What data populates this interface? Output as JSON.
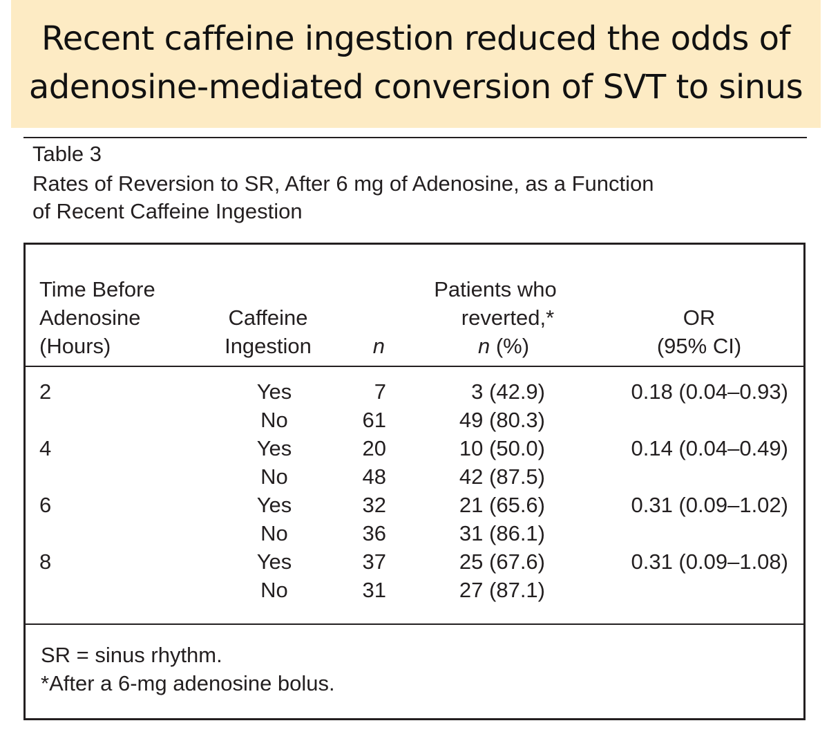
{
  "headline": {
    "line1": "Recent caffeine ingestion reduced the odds of",
    "line2": "adenosine-mediated conversion of SVT to sinus"
  },
  "table": {
    "label": "Table 3",
    "caption_line1": "Rates of Reversion to SR, After 6 mg of Adenosine, as a Function",
    "caption_line2": "of Recent Caffeine Ingestion",
    "headers": {
      "time": [
        "Time Before",
        "Adenosine",
        "(Hours)"
      ],
      "caffeine": [
        "Caffeine",
        "Ingestion"
      ],
      "n": "n",
      "reverted_line1": "Patients who",
      "reverted_line2": "reverted,*",
      "reverted_line3_italic": "n",
      "reverted_line3_rest": " (%)",
      "or_line1": "OR",
      "or_line2": "(95% CI)"
    },
    "rows": [
      {
        "time": "2",
        "caffeine": "Yes",
        "n": "7",
        "reverted": "3 (42.9)",
        "or": "0.18 (0.04–0.93)"
      },
      {
        "time": "",
        "caffeine": "No",
        "n": "61",
        "reverted": "49 (80.3)",
        "or": ""
      },
      {
        "time": "4",
        "caffeine": "Yes",
        "n": "20",
        "reverted": "10 (50.0)",
        "or": "0.14 (0.04–0.49)"
      },
      {
        "time": "",
        "caffeine": "No",
        "n": "48",
        "reverted": "42 (87.5)",
        "or": ""
      },
      {
        "time": "6",
        "caffeine": "Yes",
        "n": "32",
        "reverted": "21 (65.6)",
        "or": "0.31 (0.09–1.02)"
      },
      {
        "time": "",
        "caffeine": "No",
        "n": "36",
        "reverted": "31 (86.1)",
        "or": ""
      },
      {
        "time": "8",
        "caffeine": "Yes",
        "n": "37",
        "reverted": "25 (67.6)",
        "or": "0.31 (0.09–1.08)"
      },
      {
        "time": "",
        "caffeine": "No",
        "n": "31",
        "reverted": "27 (87.1)",
        "or": ""
      }
    ],
    "footnotes": [
      "SR = sinus rhythm.",
      "*After a 6-mg adenosine bolus."
    ]
  }
}
